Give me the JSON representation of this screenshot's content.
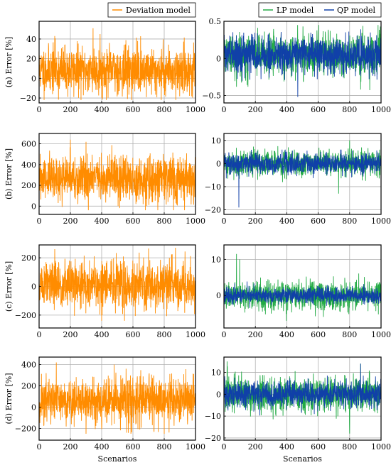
{
  "chart_data": [
    {
      "type": "line",
      "row_label": "(a) Error [%]",
      "xlim": [
        0,
        1000
      ],
      "ylim": [
        -25,
        58
      ],
      "xticks": [
        "0",
        "200",
        "400",
        "600",
        "800",
        "1000"
      ],
      "xtick_values": [
        0,
        200,
        400,
        600,
        800,
        1000
      ],
      "yticks": [
        "−20",
        "0",
        "20",
        "40"
      ],
      "ytick_values": [
        -20,
        0,
        20,
        40
      ],
      "legend": [
        "Deviation model"
      ],
      "colors": [
        "#ff8c00"
      ],
      "series": [
        {
          "name": "Deviation model",
          "color": "#ff8c00",
          "mean": 8,
          "std": 12,
          "min": -22,
          "max": 52,
          "spikes": [
            [
              100,
              43
            ],
            [
              345,
              51
            ],
            [
              390,
              45
            ],
            [
              630,
              38
            ]
          ],
          "seed": 11
        }
      ]
    },
    {
      "type": "line",
      "xlim": [
        0,
        1000
      ],
      "ylim": [
        -0.6,
        0.5
      ],
      "xticks": [
        "0",
        "200",
        "400",
        "600",
        "800",
        "1000"
      ],
      "xtick_values": [
        0,
        200,
        400,
        600,
        800,
        1000
      ],
      "yticks": [
        "−0.5",
        "0",
        "0.5"
      ],
      "ytick_values": [
        -0.5,
        0,
        0.5
      ],
      "legend": [
        "LP model",
        "QP model"
      ],
      "colors": [
        "#22aa44",
        "#1040a8"
      ],
      "series": [
        {
          "name": "LP model",
          "color": "#22aa44",
          "mean": 0.05,
          "std": 0.14,
          "min": -0.45,
          "max": 0.45,
          "spikes": [
            [
              870,
              -0.42
            ]
          ],
          "seed": 21
        },
        {
          "name": "QP model",
          "color": "#1040a8",
          "mean": 0.05,
          "std": 0.12,
          "min": -0.52,
          "max": 0.44,
          "spikes": [
            [
              470,
              -0.52
            ]
          ],
          "seed": 22
        }
      ]
    },
    {
      "type": "line",
      "row_label": "(b) Error [%]",
      "xlim": [
        0,
        1000
      ],
      "ylim": [
        -80,
        700
      ],
      "xticks": [
        "0",
        "200",
        "400",
        "600",
        "800",
        "1000"
      ],
      "xtick_values": [
        0,
        200,
        400,
        600,
        800,
        1000
      ],
      "yticks": [
        "0",
        "200",
        "400",
        "600"
      ],
      "ytick_values": [
        0,
        200,
        400,
        600
      ],
      "legend": [],
      "colors": [
        "#ff8c00"
      ],
      "series": [
        {
          "name": "Deviation model",
          "color": "#ff8c00",
          "mean": 265,
          "std": 110,
          "min": -40,
          "max": 650,
          "spikes": [
            [
              200,
              640
            ],
            [
              300,
              620
            ],
            [
              860,
              -40
            ]
          ],
          "seed": 31
        }
      ]
    },
    {
      "type": "line",
      "xlim": [
        0,
        1000
      ],
      "ylim": [
        -22,
        13
      ],
      "xticks": [
        "0",
        "200",
        "400",
        "600",
        "800",
        "1000"
      ],
      "xtick_values": [
        0,
        200,
        400,
        600,
        800,
        1000
      ],
      "yticks": [
        "−20",
        "−10",
        "0",
        "10"
      ],
      "ytick_values": [
        -20,
        -10,
        0,
        10
      ],
      "legend": [],
      "colors": [
        "#22aa44",
        "#1040a8"
      ],
      "series": [
        {
          "name": "LP model",
          "color": "#22aa44",
          "mean": 0,
          "std": 2.8,
          "min": -13,
          "max": 10,
          "spikes": [
            [
              800,
              10
            ],
            [
              730,
              -13
            ]
          ],
          "seed": 41
        },
        {
          "name": "QP model",
          "color": "#1040a8",
          "mean": 0,
          "std": 2.4,
          "min": -19,
          "max": 6,
          "spikes": [
            [
              95,
              -19
            ]
          ],
          "seed": 42
        }
      ]
    },
    {
      "type": "line",
      "row_label": "(c) Error [%]",
      "xlim": [
        0,
        1000
      ],
      "ylim": [
        -290,
        290
      ],
      "xticks": [
        "0",
        "200",
        "400",
        "600",
        "800",
        "1000"
      ],
      "xtick_values": [
        0,
        200,
        400,
        600,
        800,
        1000
      ],
      "yticks": [
        "−200",
        "0",
        "200"
      ],
      "ytick_values": [
        -200,
        0,
        200
      ],
      "legend": [],
      "colors": [
        "#ff8c00"
      ],
      "series": [
        {
          "name": "Deviation model",
          "color": "#ff8c00",
          "mean": 10,
          "std": 85,
          "min": -240,
          "max": 270,
          "spikes": [
            [
              100,
              260
            ],
            [
              400,
              -240
            ],
            [
              700,
              265
            ]
          ],
          "seed": 51
        }
      ]
    },
    {
      "type": "line",
      "xlim": [
        0,
        1000
      ],
      "ylim": [
        -9,
        14
      ],
      "xticks": [
        "0",
        "200",
        "400",
        "600",
        "800",
        "1000"
      ],
      "xtick_values": [
        0,
        200,
        400,
        600,
        800,
        1000
      ],
      "yticks": [
        "0",
        "10"
      ],
      "ytick_values": [
        0,
        10
      ],
      "legend": [],
      "colors": [
        "#22aa44",
        "#1040a8"
      ],
      "series": [
        {
          "name": "LP model",
          "color": "#22aa44",
          "mean": 0,
          "std": 2.0,
          "min": -7,
          "max": 11.5,
          "spikes": [
            [
              80,
              11.5
            ],
            [
              100,
              10
            ]
          ],
          "seed": 61
        },
        {
          "name": "QP model",
          "color": "#1040a8",
          "mean": 0,
          "std": 1.1,
          "min": -4,
          "max": 4,
          "spikes": [],
          "seed": 62
        }
      ]
    },
    {
      "type": "line",
      "row_label": "(d) Error [%]",
      "xlim": [
        0,
        1000
      ],
      "ylim": [
        -310,
        470
      ],
      "xticks": [
        "0",
        "200",
        "400",
        "600",
        "800",
        "1000"
      ],
      "xtick_values": [
        0,
        200,
        400,
        600,
        800,
        1000
      ],
      "yticks": [
        "−200",
        "0",
        "200",
        "400"
      ],
      "ytick_values": [
        -200,
        0,
        200,
        400
      ],
      "legend": [],
      "colors": [
        "#ff8c00"
      ],
      "series": [
        {
          "name": "Deviation model",
          "color": "#ff8c00",
          "mean": 60,
          "std": 110,
          "min": -250,
          "max": 420,
          "spikes": [
            [
              110,
              420
            ],
            [
              480,
              400
            ],
            [
              300,
              -250
            ],
            [
              560,
              -240
            ]
          ],
          "seed": 71
        }
      ]
    },
    {
      "type": "line",
      "xlim": [
        0,
        1000
      ],
      "ylim": [
        -21,
        17
      ],
      "xticks": [
        "0",
        "200",
        "400",
        "600",
        "800",
        "1000"
      ],
      "xtick_values": [
        0,
        200,
        400,
        600,
        800,
        1000
      ],
      "yticks": [
        "−20",
        "−10",
        "0",
        "10"
      ],
      "ytick_values": [
        -20,
        -10,
        0,
        10
      ],
      "legend": [],
      "colors": [
        "#22aa44",
        "#1040a8"
      ],
      "series": [
        {
          "name": "LP model",
          "color": "#22aa44",
          "mean": 0,
          "std": 4.0,
          "min": -18,
          "max": 15,
          "spikes": [
            [
              20,
              15
            ],
            [
              800,
              -18
            ],
            [
              870,
              14
            ]
          ],
          "seed": 81
        },
        {
          "name": "QP model",
          "color": "#1040a8",
          "mean": 0,
          "std": 3.0,
          "min": -12,
          "max": 14,
          "spikes": [
            [
              870,
              14
            ]
          ],
          "seed": 82
        }
      ]
    }
  ],
  "shared": {
    "xlabel": "Scenarios"
  }
}
